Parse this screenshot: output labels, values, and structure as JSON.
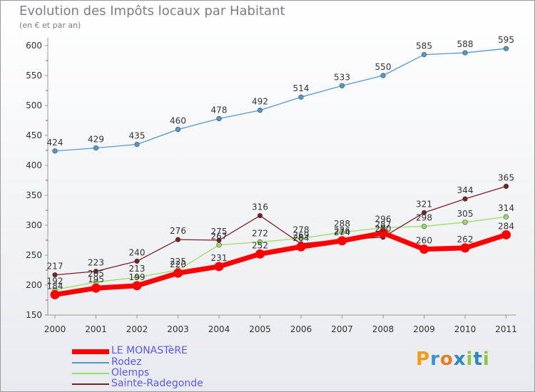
{
  "title": "Evolution des Impôts locaux par Habitant",
  "subtitle": "(en € et par an)",
  "brand": {
    "letters": [
      "P",
      "r",
      "o",
      "x",
      "i",
      "t",
      "i"
    ],
    "colors": [
      "#f39c12",
      "#3b8fd8",
      "#e67e22",
      "#2e86c1",
      "#8dc63f",
      "#2e86c1",
      "#8dc63f"
    ]
  },
  "chart_data": {
    "type": "line",
    "title": "Evolution des Impôts locaux par Habitant",
    "ylabel": "(en € et par an)",
    "xlabel": "",
    "ylim": [
      150,
      600
    ],
    "yticks": [
      "150",
      "200",
      "250",
      "300",
      "350",
      "400",
      "450",
      "500",
      "550",
      "600"
    ],
    "categories": [
      "2000",
      "2001",
      "2002",
      "2003",
      "2004",
      "2005",
      "2006",
      "2007",
      "2008",
      "2009",
      "2010",
      "2011"
    ],
    "series": [
      {
        "name": "LE MONASTèRE",
        "color": "#ff0000",
        "values": [
          184,
          195,
          199,
          220,
          231,
          252,
          264,
          274,
          287,
          260,
          262,
          284
        ],
        "labels": [
          "184",
          "195",
          "199",
          "220",
          "231",
          "252",
          "264",
          "274",
          "287",
          "260",
          "262",
          "284"
        ]
      },
      {
        "name": "Rodez",
        "color": "#5599cc",
        "values": [
          424,
          429,
          435,
          460,
          478,
          492,
          514,
          533,
          550,
          585,
          588,
          595
        ],
        "labels": [
          "424",
          "429",
          "435",
          "460",
          "478",
          "492",
          "514",
          "533",
          "550",
          "585",
          "588",
          "595"
        ]
      },
      {
        "name": "Olemps",
        "color": "#99dd66",
        "values": [
          192,
          205,
          213,
          225,
          267,
          272,
          278,
          288,
          296,
          298,
          305,
          314
        ],
        "labels": [
          "192",
          "205",
          "213",
          "225",
          "267",
          "272",
          "278",
          "288",
          "296",
          "298",
          "305",
          "314"
        ]
      },
      {
        "name": "Sainte-Radegonde",
        "color": "#772222",
        "values": [
          217,
          223,
          240,
          276,
          275,
          316,
          269,
          276,
          280,
          321,
          344,
          365
        ],
        "labels": [
          "217",
          "223",
          "240",
          "276",
          "275",
          "316",
          "269",
          "276",
          "280",
          "321",
          "344",
          "365"
        ]
      }
    ]
  }
}
